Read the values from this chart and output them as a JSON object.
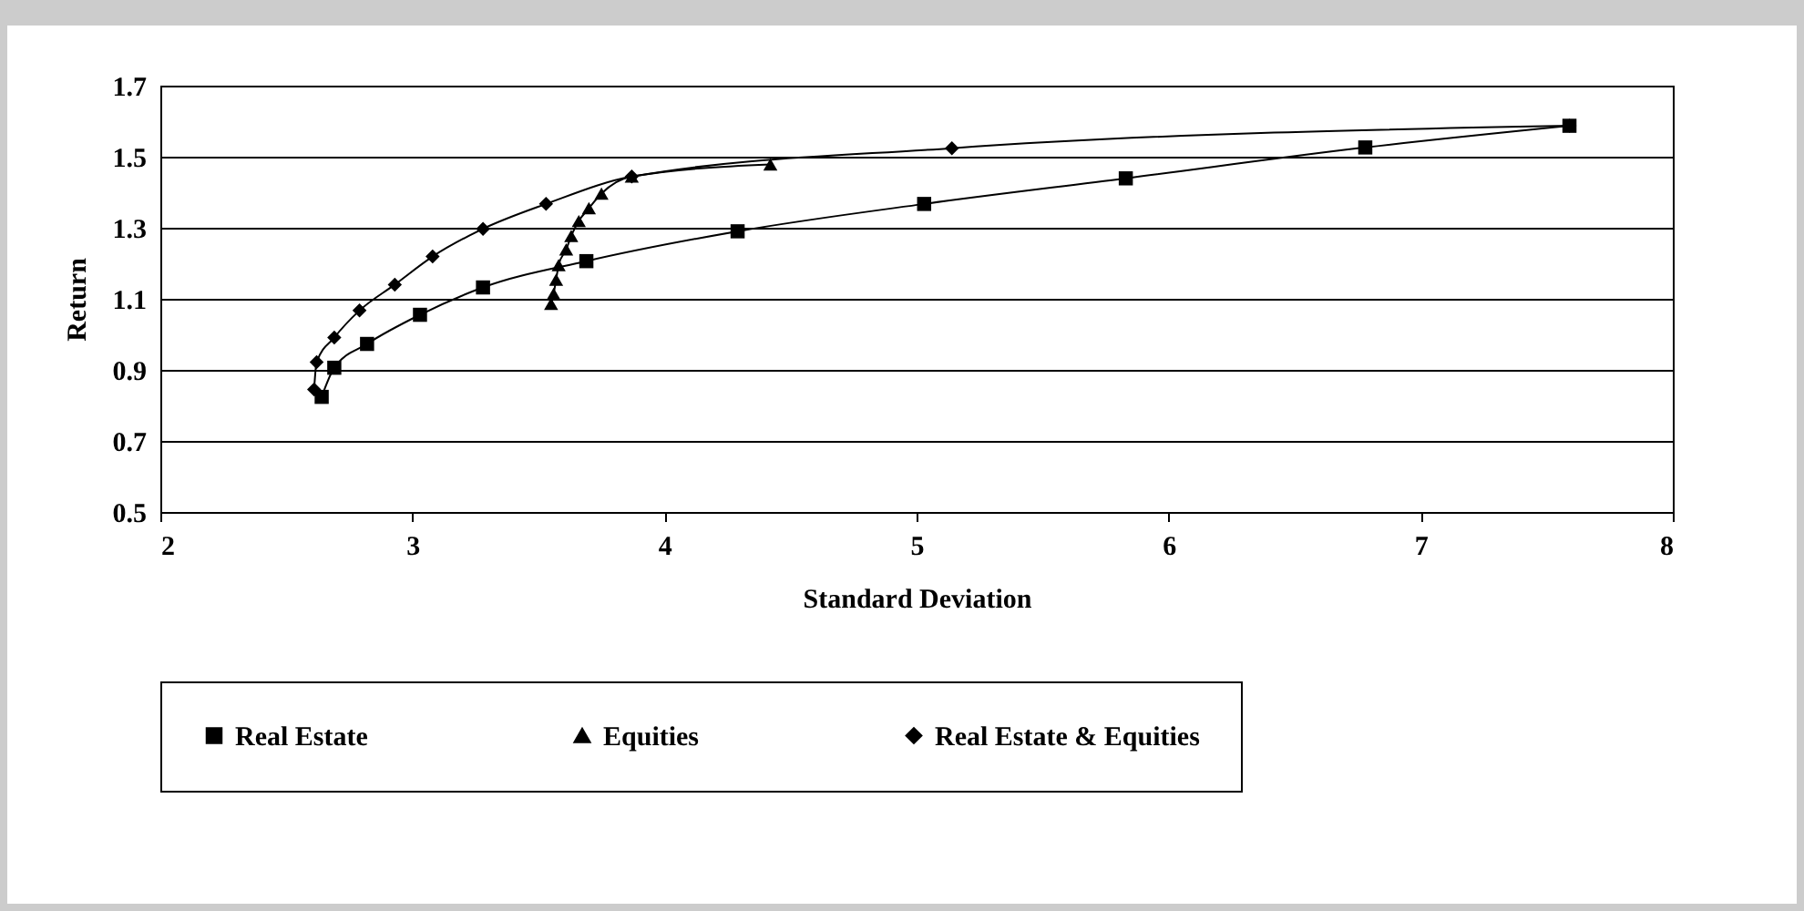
{
  "chart_data": {
    "type": "line",
    "xlabel": "Standard Deviation",
    "ylabel": "Return",
    "xlim": [
      2,
      8
    ],
    "xticks": [
      2,
      3,
      4,
      5,
      6,
      7,
      8
    ],
    "ylim": [
      0.5,
      1.7
    ],
    "yticks": [
      0.5,
      0.7,
      0.9,
      1.1,
      1.3,
      1.5,
      1.7
    ],
    "grid": "y",
    "legend": "bottom",
    "line_style": "solid",
    "series": [
      {
        "name": "Real Estate",
        "color": "#000000",
        "marker": "square",
        "x": [
          2.64,
          2.69,
          2.82,
          3.03,
          3.28,
          3.69,
          4.29,
          5.03,
          5.83,
          6.78,
          7.59
        ],
        "values": [
          0.824,
          0.906,
          0.973,
          1.055,
          1.132,
          1.206,
          1.29,
          1.367,
          1.439,
          1.526,
          1.587
        ]
      },
      {
        "name": "Equities",
        "color": "#000000",
        "marker": "triangle",
        "x": [
          3.55,
          3.56,
          3.57,
          3.58,
          3.61,
          3.63,
          3.66,
          3.7,
          3.75,
          3.87,
          4.42
        ],
        "values": [
          1.086,
          1.114,
          1.154,
          1.195,
          1.239,
          1.277,
          1.319,
          1.355,
          1.396,
          1.444,
          1.478
        ]
      },
      {
        "name": "Real Estate & Equities",
        "color": "#000000",
        "marker": "diamond",
        "x": [
          2.61,
          2.62,
          2.69,
          2.79,
          2.93,
          3.08,
          3.28,
          3.53,
          3.87,
          5.14,
          7.59
        ],
        "values": [
          0.845,
          0.922,
          0.991,
          1.067,
          1.14,
          1.219,
          1.297,
          1.367,
          1.444,
          1.524,
          1.587
        ]
      }
    ]
  }
}
